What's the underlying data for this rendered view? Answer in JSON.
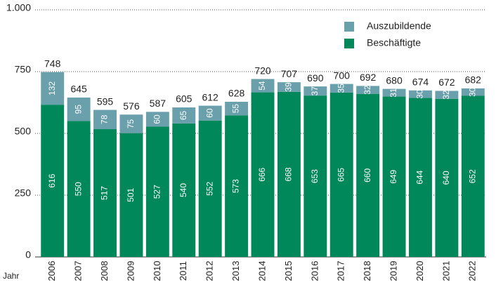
{
  "chart_data": {
    "type": "stacked-bar",
    "x_label": "Jahr",
    "categories": [
      "2006",
      "2007",
      "2008",
      "2009",
      "2010",
      "2011",
      "2012",
      "2013",
      "2014",
      "2015",
      "2016",
      "2017",
      "2018",
      "2019",
      "2020",
      "2021",
      "2022"
    ],
    "series": [
      {
        "name": "Beschäftigte",
        "color": "#00875a",
        "values": [
          616,
          550,
          517,
          501,
          527,
          540,
          552,
          573,
          666,
          668,
          653,
          665,
          660,
          649,
          644,
          640,
          652
        ]
      },
      {
        "name": "Auszubildende",
        "color": "#6a9fac",
        "values": [
          132,
          95,
          78,
          75,
          60,
          65,
          60,
          55,
          54,
          39,
          37,
          35,
          32,
          31,
          30,
          32,
          30
        ]
      }
    ],
    "totals": [
      748,
      645,
      595,
      576,
      587,
      605,
      612,
      628,
      720,
      707,
      690,
      700,
      692,
      680,
      674,
      672,
      682
    ],
    "ylim": [
      0,
      1000
    ],
    "yticks": [
      0,
      250,
      500,
      750,
      {
        "value": 1000,
        "label": "1.000"
      }
    ],
    "grid": true
  }
}
